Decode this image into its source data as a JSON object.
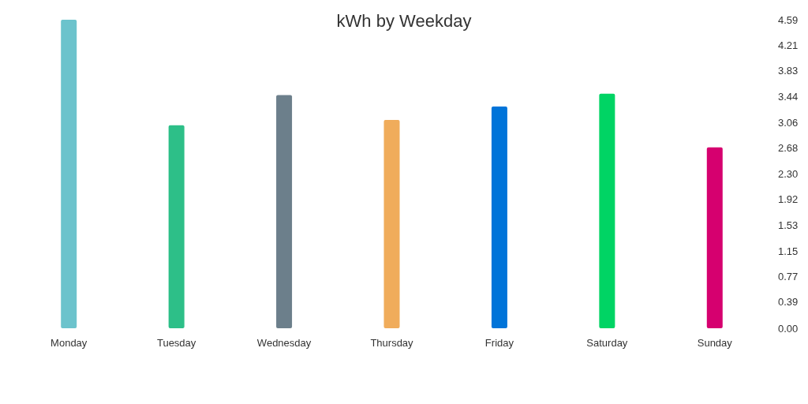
{
  "chart_data": {
    "type": "bar",
    "title": "kWh by Weekday",
    "categories": [
      "Monday",
      "Tuesday",
      "Wednesday",
      "Thursday",
      "Friday",
      "Saturday",
      "Sunday"
    ],
    "values": [
      4.59,
      3.02,
      3.47,
      3.1,
      3.3,
      3.49,
      2.69
    ],
    "colors": [
      "#6cc3cc",
      "#2dbf88",
      "#6c7f8b",
      "#f0ac5b",
      "#0074d9",
      "#00d464",
      "#d6006f"
    ],
    "ylim": [
      0,
      4.59
    ],
    "yticks": [
      {
        "value": 0,
        "label": "0.00"
      },
      {
        "value": 0.39,
        "label": "0.39"
      },
      {
        "value": 0.77,
        "label": "0.77"
      },
      {
        "value": 1.15,
        "label": "1.15"
      },
      {
        "value": 1.53,
        "label": "1.53"
      },
      {
        "value": 1.92,
        "label": "1.92"
      },
      {
        "value": 2.3,
        "label": "2.30"
      },
      {
        "value": 2.68,
        "label": "2.68"
      },
      {
        "value": 3.06,
        "label": "3.06"
      },
      {
        "value": 3.44,
        "label": "3.44"
      },
      {
        "value": 3.83,
        "label": "3.83"
      },
      {
        "value": 4.21,
        "label": "4.21"
      },
      {
        "value": 4.59,
        "label": "4.59"
      }
    ],
    "grid": false
  }
}
